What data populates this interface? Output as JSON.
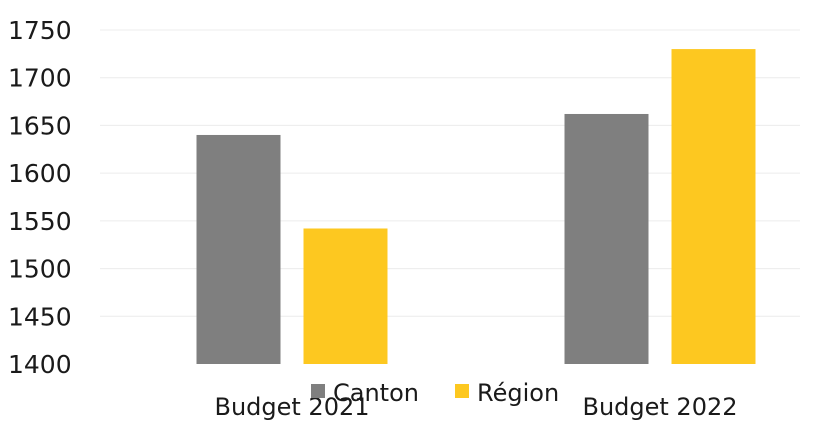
{
  "chart_data": {
    "type": "bar",
    "categories": [
      "Budget 2021",
      "Budget 2022"
    ],
    "series": [
      {
        "name": "Canton",
        "values": [
          1640,
          1662
        ],
        "color": "#7f7f7f"
      },
      {
        "name": "Région",
        "values": [
          1542,
          1730
        ],
        "color": "#fdc820"
      }
    ],
    "y_ticks": [
      "1400",
      "1450",
      "1500",
      "1550",
      "1600",
      "1650",
      "1700",
      "1750"
    ],
    "ylim": [
      1400,
      1750
    ],
    "grid": true,
    "legend": {
      "placement": "bottom-center"
    }
  }
}
